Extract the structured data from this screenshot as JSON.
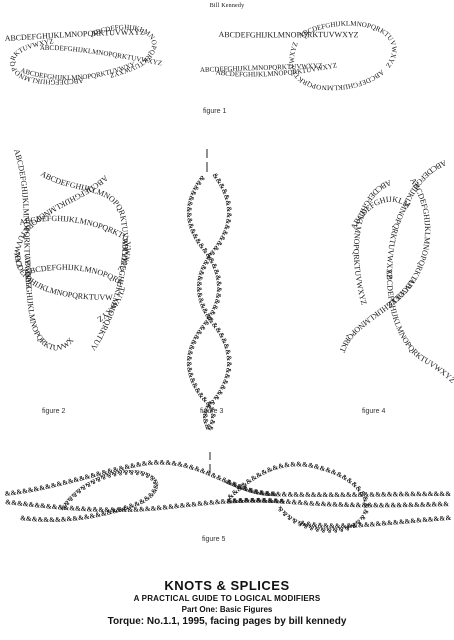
{
  "header": {
    "author": "Bill Kennedy"
  },
  "alphabet": "ABCDEFGHIJKLMNOPQRKTUVWXYZ",
  "amp_chain": "&&&&&&&&&&&&&&&&&&&&&&&&&&&&&&&&&&&&&&&&&&&&&&&&",
  "figures": {
    "fig1": {
      "caption": "figure 1"
    },
    "fig2": {
      "caption": "figure 2"
    },
    "fig3": {
      "caption": "figure 3"
    },
    "fig4": {
      "caption": "figure 4"
    },
    "fig5": {
      "caption": "figure 5"
    }
  },
  "footer": {
    "title": "KNOTS & SPLICES",
    "subtitle": "A PRACTICAL GUIDE TO LOGICAL MODIFIERS",
    "part": "Part One: Basic Figures",
    "credit": "Torque: No.1.1, 1995, facing pages by bill kennedy"
  }
}
